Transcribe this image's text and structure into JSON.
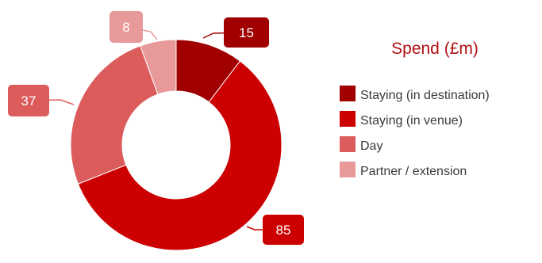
{
  "chart_data": {
    "type": "pie",
    "variant": "donut",
    "title": "",
    "legend": {
      "title": "Spend (£m)",
      "placement": "right"
    },
    "categories": [
      "Staying (in destination)",
      "Staying (in venue)",
      "Day",
      "Partner / extension"
    ],
    "values": [
      15,
      85,
      37,
      8
    ],
    "data_labels": [
      "15",
      "85",
      "37",
      "8"
    ],
    "colors": [
      "#a00000",
      "#cc0000",
      "#dc5c5c",
      "#e89a9a"
    ]
  }
}
